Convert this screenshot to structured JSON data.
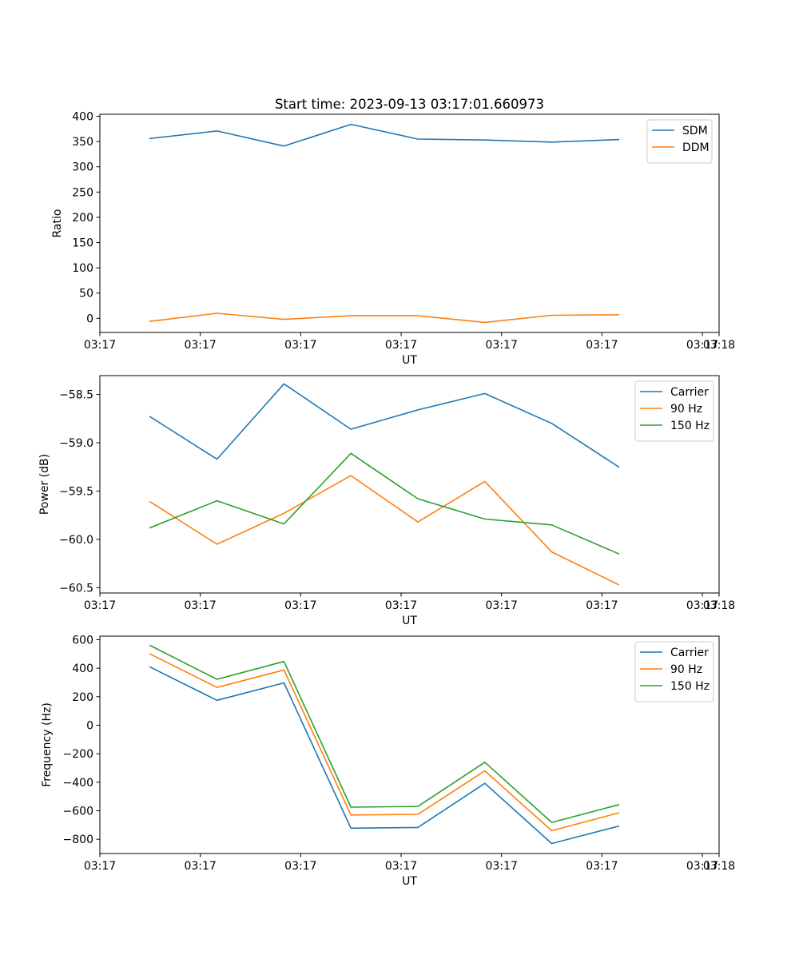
{
  "figure_title": "Start time: 2023-09-13 03:17:01.660973",
  "chart_data": [
    {
      "type": "line",
      "title": "Start time: 2023-09-13 03:17:01.660973",
      "xlabel": "UT",
      "ylabel": "Ratio",
      "x": [
        1,
        2,
        3,
        4,
        5,
        6,
        7,
        8
      ],
      "xlim": [
        0.25,
        9.5
      ],
      "x_ticks": [
        0.25,
        1.75,
        3.25,
        4.75,
        6.25,
        7.75,
        9.25
      ],
      "x_tick_labels": [
        "03:17",
        "03:17",
        "03:17",
        "03:17",
        "03:17",
        "03:17",
        "03:17"
      ],
      "x_edge_label": "03:18",
      "ylim": [
        -28,
        404
      ],
      "y_ticks": [
        0,
        50,
        100,
        150,
        200,
        250,
        300,
        350,
        400
      ],
      "y_tick_labels": [
        "0",
        "50",
        "100",
        "150",
        "200",
        "250",
        "300",
        "350",
        "400"
      ],
      "legend": "top-right",
      "series": [
        {
          "name": "SDM",
          "color": "#1f77b4",
          "values": [
            356,
            371,
            341,
            384,
            355,
            353,
            349,
            354
          ]
        },
        {
          "name": "DDM",
          "color": "#ff7f0e",
          "values": [
            -6,
            10,
            -2,
            5,
            5,
            -8,
            6,
            7
          ]
        }
      ]
    },
    {
      "type": "line",
      "xlabel": "UT",
      "ylabel": "Power (dB)",
      "x": [
        1,
        2,
        3,
        4,
        5,
        6,
        7,
        8
      ],
      "xlim": [
        0.25,
        9.5
      ],
      "x_ticks": [
        0.25,
        1.75,
        3.25,
        4.75,
        6.25,
        7.75,
        9.25
      ],
      "x_tick_labels": [
        "03:17",
        "03:17",
        "03:17",
        "03:17",
        "03:17",
        "03:17",
        "03:17"
      ],
      "x_edge_label": "03:18",
      "ylim": [
        -60.555,
        -58.305
      ],
      "y_ticks": [
        -60.5,
        -60.0,
        -59.5,
        -59.0,
        -58.5
      ],
      "y_tick_labels": [
        "−60.5",
        "−60.0",
        "−59.5",
        "−59.0",
        "−58.5"
      ],
      "legend": "top-right",
      "series": [
        {
          "name": "Carrier",
          "color": "#1f77b4",
          "values": [
            -58.73,
            -59.17,
            -58.39,
            -58.86,
            -58.66,
            -58.49,
            -58.8,
            -59.25
          ]
        },
        {
          "name": "90 Hz",
          "color": "#ff7f0e",
          "values": [
            -59.61,
            -60.05,
            -59.73,
            -59.34,
            -59.82,
            -59.4,
            -60.13,
            -60.47
          ]
        },
        {
          "name": "150 Hz",
          "color": "#2ca02c",
          "values": [
            -59.88,
            -59.6,
            -59.84,
            -59.11,
            -59.58,
            -59.79,
            -59.85,
            -60.15
          ]
        }
      ]
    },
    {
      "type": "line",
      "xlabel": "UT",
      "ylabel": "Frequency (Hz)",
      "x": [
        1,
        2,
        3,
        4,
        5,
        6,
        7,
        8
      ],
      "xlim": [
        0.25,
        9.5
      ],
      "x_ticks": [
        0.25,
        1.75,
        3.25,
        4.75,
        6.25,
        7.75,
        9.25
      ],
      "x_tick_labels": [
        "03:17",
        "03:17",
        "03:17",
        "03:17",
        "03:17",
        "03:17",
        "03:17"
      ],
      "x_edge_label": "03:18",
      "ylim": [
        -900,
        625
      ],
      "y_ticks": [
        -800,
        -600,
        -400,
        -200,
        0,
        200,
        400,
        600
      ],
      "y_tick_labels": [
        "−800",
        "−600",
        "−400",
        "−200",
        "0",
        "200",
        "400",
        "600"
      ],
      "legend": "top-right",
      "series": [
        {
          "name": "Carrier",
          "color": "#1f77b4",
          "values": [
            408,
            175,
            297,
            -722,
            -717,
            -408,
            -830,
            -708
          ]
        },
        {
          "name": "90 Hz",
          "color": "#ff7f0e",
          "values": [
            500,
            265,
            388,
            -630,
            -625,
            -320,
            -740,
            -615
          ]
        },
        {
          "name": "150 Hz",
          "color": "#2ca02c",
          "values": [
            560,
            322,
            447,
            -575,
            -570,
            -260,
            -682,
            -558
          ]
        }
      ]
    }
  ]
}
